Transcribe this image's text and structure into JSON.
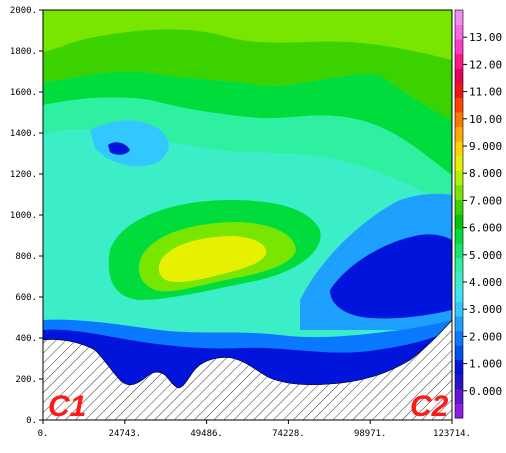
{
  "chart_data": {
    "type": "heatmap",
    "title": "",
    "xlabel": "",
    "ylabel": "",
    "xlim": [
      0,
      123714
    ],
    "ylim": [
      0,
      2000
    ],
    "x_ticks": [
      "0.",
      "24743.",
      "49486.",
      "74228.",
      "98971.",
      "123714."
    ],
    "y_ticks": [
      "0.",
      "200.",
      "400.",
      "600.",
      "800.",
      "1000.",
      "1200.",
      "1400.",
      "1600.",
      "1800.",
      "2000."
    ],
    "colorbar": {
      "labels": [
        "0.000",
        "1.000",
        "2.000",
        "3.000",
        "4.000",
        "5.000",
        "6.000",
        "7.000",
        "8.000",
        "9.000",
        "10.00",
        "11.00",
        "12.00",
        "13.00"
      ],
      "levels": [
        -1,
        -0.5,
        0,
        0.5,
        1,
        1.5,
        2,
        2.5,
        3,
        3.5,
        4,
        4.5,
        5,
        5.5,
        6,
        6.5,
        7,
        7.5,
        8,
        8.5,
        9,
        9.5,
        10,
        10.5,
        11,
        11.5,
        12,
        12.5,
        13,
        13.5,
        14
      ],
      "colors": [
        "#8c1ee6",
        "#6414d2",
        "#2814c8",
        "#0014dc",
        "#0050f0",
        "#0a78ff",
        "#1ea0ff",
        "#32c8ff",
        "#3ce6f0",
        "#3ceec8",
        "#2ff0a0",
        "#14e66e",
        "#00dc3c",
        "#00c800",
        "#3cd200",
        "#78e600",
        "#b4f000",
        "#e6f000",
        "#ffd200",
        "#ffaa00",
        "#ff7800",
        "#ff4600",
        "#f01414",
        "#e6005a",
        "#ff148c",
        "#ff3cc8",
        "#ff64e6",
        "#f08cf0"
      ]
    },
    "terrain_hatch": true,
    "corner_labels": {
      "left": "C1",
      "right": "C2"
    }
  }
}
